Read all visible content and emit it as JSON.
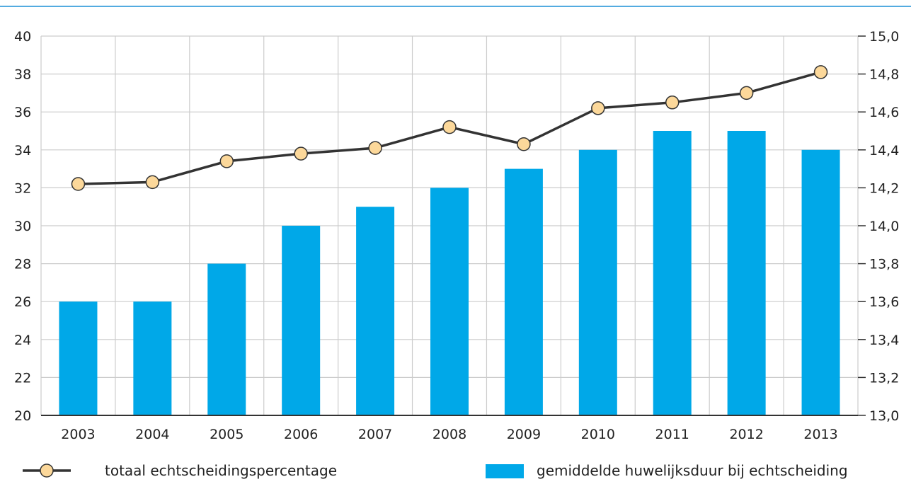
{
  "chart_data": {
    "type": "bar",
    "categories": [
      "2003",
      "2004",
      "2005",
      "2006",
      "2007",
      "2008",
      "2009",
      "2010",
      "2011",
      "2012",
      "2013"
    ],
    "series": [
      {
        "name": "totaal echtscheidingspercentage",
        "type": "line",
        "axis": "left",
        "values": [
          32.2,
          32.3,
          33.4,
          33.8,
          34.1,
          35.2,
          34.3,
          36.2,
          36.5,
          37.0,
          38.1
        ]
      },
      {
        "name": "gemiddelde huwelijksduur bij echtscheiding",
        "type": "bar",
        "axis": "right",
        "values": [
          13.6,
          13.6,
          13.8,
          14.0,
          14.1,
          14.2,
          14.3,
          14.4,
          14.5,
          14.5,
          14.4
        ]
      }
    ],
    "y_left": {
      "ylim": [
        20,
        40
      ],
      "ticks": [
        "20",
        "22",
        "24",
        "26",
        "28",
        "30",
        "32",
        "34",
        "36",
        "38",
        "40"
      ]
    },
    "y_right": {
      "ylim": [
        13.0,
        15.0
      ],
      "ticks": [
        "13,0",
        "13,2",
        "13,4",
        "13,6",
        "13,8",
        "14,0",
        "14,2",
        "14,4",
        "14,6",
        "14,8",
        "15,0"
      ]
    },
    "grid": true,
    "legend_position": "bottom",
    "colors": {
      "bar": "#00a8e8",
      "line": "#333333",
      "marker_fill": "#fcd89a",
      "marker_stroke": "#333333",
      "grid": "#cccccc",
      "top_rule": "#1a8fd6"
    }
  }
}
